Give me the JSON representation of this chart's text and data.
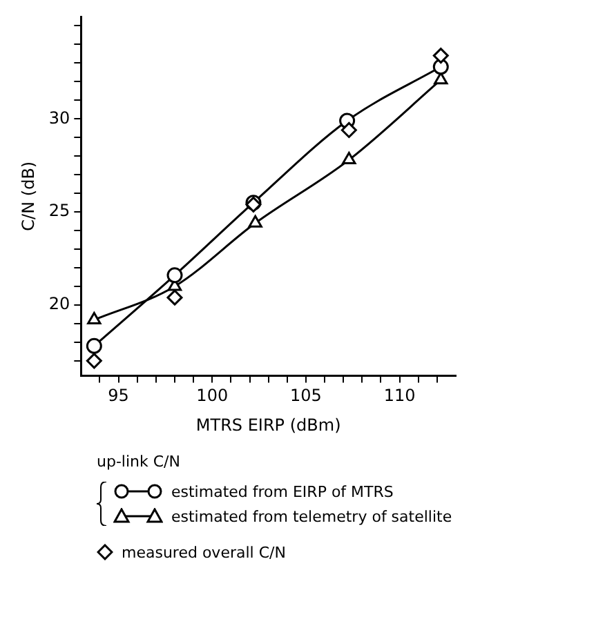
{
  "chart_data": {
    "type": "line",
    "xlabel": "MTRS EIRP (dBm)",
    "ylabel": "C/N (dB)",
    "legend_title": "up-link C/N",
    "legend": "bottom",
    "grid": false,
    "line_style": "solid",
    "xlim": [
      93,
      113
    ],
    "ylim": [
      16.2,
      35.5
    ],
    "xticks": [
      {
        "value": 94,
        "label": null
      },
      95,
      {
        "value": 96,
        "label": null
      },
      {
        "value": 97,
        "label": null
      },
      {
        "value": 98,
        "label": null
      },
      {
        "value": 99,
        "label": null
      },
      100,
      {
        "value": 101,
        "label": null
      },
      {
        "value": 102,
        "label": null
      },
      {
        "value": 103,
        "label": null
      },
      {
        "value": 104,
        "label": null
      },
      105,
      {
        "value": 106,
        "label": null
      },
      {
        "value": 107,
        "label": null
      },
      {
        "value": 108,
        "label": null
      },
      {
        "value": 109,
        "label": null
      },
      110,
      {
        "value": 111,
        "label": null
      },
      {
        "value": 112,
        "label": null
      }
    ],
    "yticks": [
      {
        "value": 17,
        "label": null
      },
      {
        "value": 18,
        "label": null
      },
      {
        "value": 19,
        "label": null
      },
      20,
      {
        "value": 21,
        "label": null
      },
      {
        "value": 22,
        "label": null
      },
      {
        "value": 23,
        "label": null
      },
      {
        "value": 24,
        "label": null
      },
      25,
      {
        "value": 26,
        "label": null
      },
      {
        "value": 27,
        "label": null
      },
      {
        "value": 28,
        "label": null
      },
      {
        "value": 29,
        "label": null
      },
      30,
      {
        "value": 31,
        "label": null
      },
      {
        "value": 32,
        "label": null
      },
      {
        "value": 33,
        "label": null
      },
      {
        "value": 34,
        "label": null
      },
      {
        "value": 35,
        "label": null
      }
    ],
    "series": [
      {
        "name": "estimated from EIRP of MTRS",
        "marker": "circle",
        "color": "#000000",
        "x": [
          93.7,
          98,
          102.2,
          107.2,
          112.2
        ],
        "values": [
          17.8,
          21.6,
          25.5,
          29.9,
          32.8
        ]
      },
      {
        "name": "estimated from telemetry of satellite",
        "marker": "triangle",
        "color": "#000000",
        "x": [
          93.7,
          98,
          102.3,
          107.3,
          112.2
        ],
        "values": [
          19.2,
          21.0,
          24.4,
          27.8,
          32.1
        ]
      },
      {
        "name": "measured overall C/N",
        "type": "scatter",
        "marker": "diamond",
        "color": "#000000",
        "x": [
          93.7,
          98,
          102.2,
          107.3,
          112.2
        ],
        "values": [
          17.0,
          20.4,
          25.4,
          29.4,
          33.4
        ]
      }
    ]
  }
}
